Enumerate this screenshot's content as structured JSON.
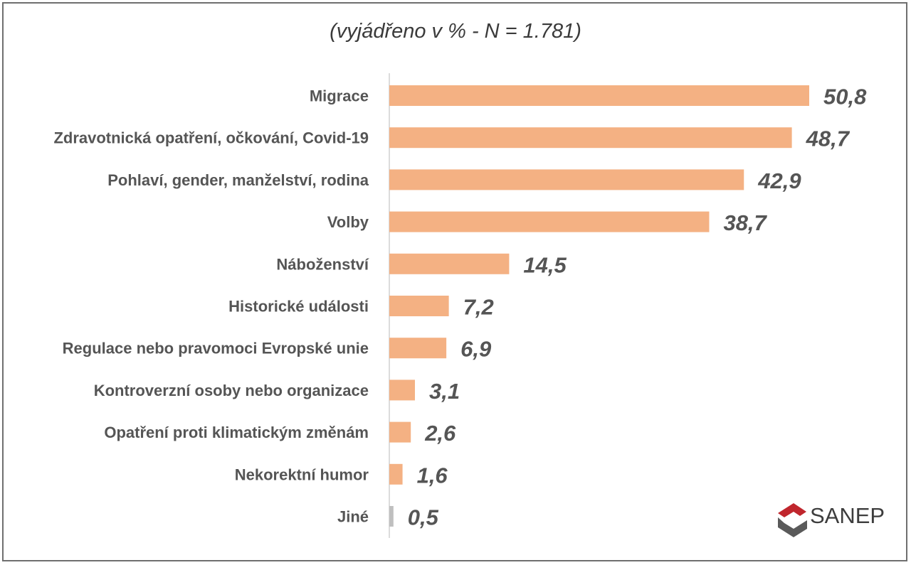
{
  "chart_data": {
    "type": "bar",
    "orientation": "horizontal",
    "title": "",
    "subtitle": "(vyjádřeno v % - N = 1.781)",
    "categories": [
      "Migrace",
      "Zdravotnická opatření, očkování, Covid-19",
      "Pohlaví, gender, manželství, rodina",
      "Volby",
      "Náboženství",
      "Historické události",
      "Regulace nebo pravomoci Evropské unie",
      "Kontroverzní osoby nebo organizace",
      "Opatření proti klimatickým změnám",
      "Nekorektní humor",
      "Jiné"
    ],
    "values": [
      50.8,
      48.7,
      42.9,
      38.7,
      14.5,
      7.2,
      6.9,
      3.1,
      2.6,
      1.6,
      0.5
    ],
    "value_labels": [
      "50,8",
      "48,7",
      "42,9",
      "38,7",
      "14,5",
      "7,2",
      "6,9",
      "3,1",
      "2,6",
      "1,6",
      "0,5"
    ],
    "xlim": [
      0,
      50.8
    ],
    "grid": false,
    "legend": "none",
    "bar_color": "#f4b183",
    "last_bar_color": "#bfbfbf"
  },
  "logo": {
    "text": "SANEP",
    "colors": {
      "red": "#c0262d",
      "grey": "#5a5a5a"
    }
  }
}
